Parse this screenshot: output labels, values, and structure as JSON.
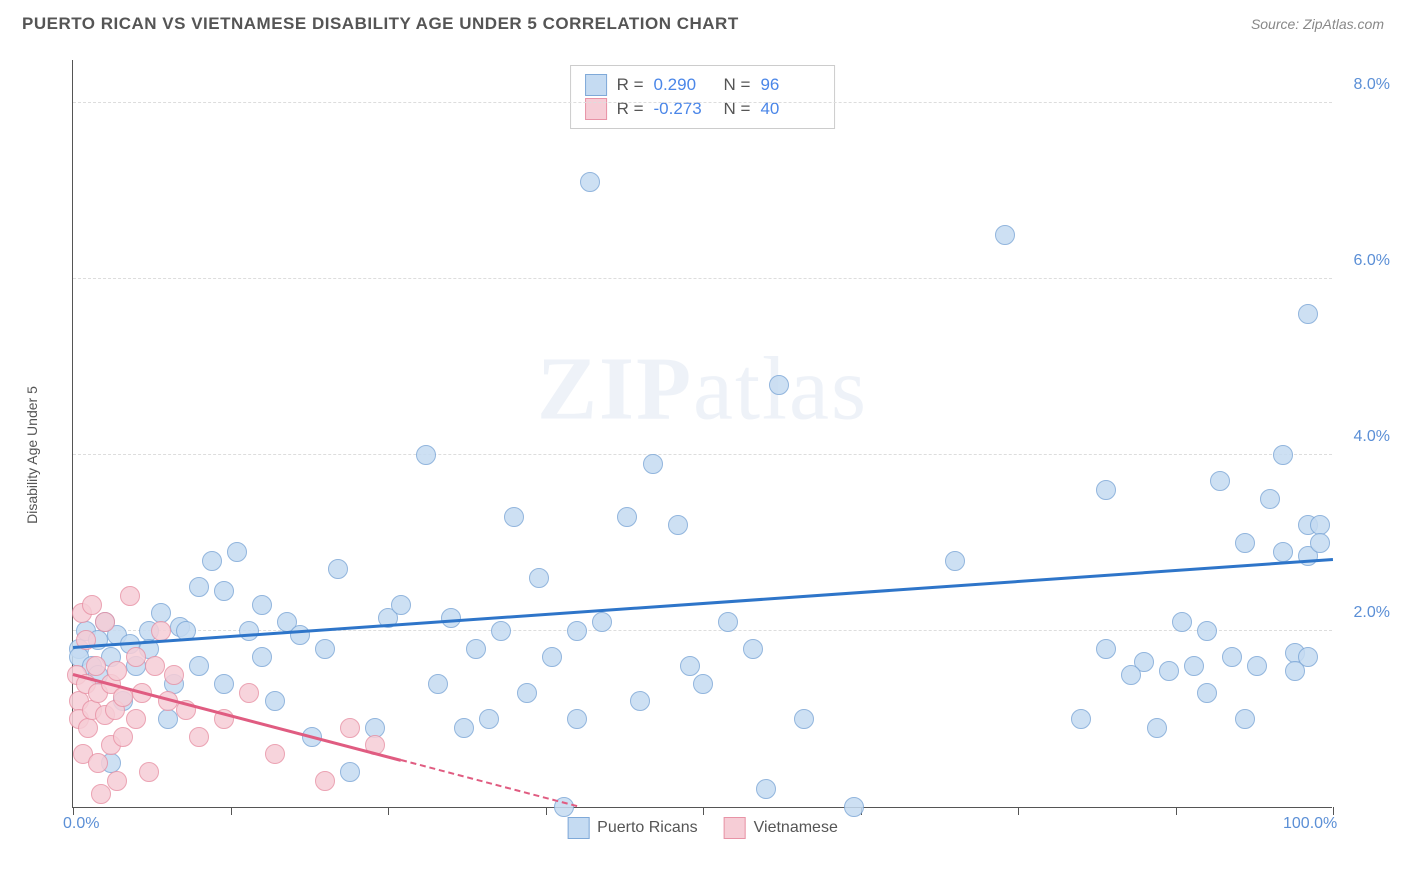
{
  "header": {
    "title": "PUERTO RICAN VS VIETNAMESE DISABILITY AGE UNDER 5 CORRELATION CHART",
    "source": "Source: ZipAtlas.com"
  },
  "watermark": "ZIPatlas",
  "chart": {
    "type": "scatter",
    "ylabel": "Disability Age Under 5",
    "xlim": [
      0,
      100
    ],
    "ylim": [
      0,
      8.5
    ],
    "x_ticks": [
      0,
      12.5,
      25,
      37.5,
      50,
      62.5,
      75,
      87.5,
      100
    ],
    "x_tick_labels": {
      "0": "0.0%",
      "100": "100.0%"
    },
    "y_ticks": [
      2.0,
      4.0,
      6.0,
      8.0
    ],
    "y_tick_format": "%.1f%%",
    "grid_color": "#dddddd",
    "axis_color": "#555555",
    "background_color": "#ffffff",
    "marker_radius": 10,
    "marker_border_width": 1.2,
    "series": [
      {
        "name": "Puerto Ricans",
        "fill": "#c5dbf2",
        "stroke": "#7fa9d8",
        "line_color": "#2e75c9",
        "points": [
          [
            0.5,
            1.8
          ],
          [
            0.5,
            1.7
          ],
          [
            1,
            2.0
          ],
          [
            1.5,
            1.6
          ],
          [
            2,
            1.9
          ],
          [
            2,
            1.5
          ],
          [
            2.5,
            2.1
          ],
          [
            3,
            1.7
          ],
          [
            3,
            0.5
          ],
          [
            3.5,
            1.95
          ],
          [
            4,
            1.2
          ],
          [
            4.5,
            1.85
          ],
          [
            5,
            1.6
          ],
          [
            6,
            2.0
          ],
          [
            6,
            1.8
          ],
          [
            7,
            2.2
          ],
          [
            7.5,
            1.0
          ],
          [
            8,
            1.4
          ],
          [
            8.5,
            2.05
          ],
          [
            9,
            2.0
          ],
          [
            10,
            1.6
          ],
          [
            10,
            2.5
          ],
          [
            11,
            2.8
          ],
          [
            12,
            1.4
          ],
          [
            12,
            2.45
          ],
          [
            13,
            2.9
          ],
          [
            14,
            2.0
          ],
          [
            15,
            1.7
          ],
          [
            15,
            2.3
          ],
          [
            16,
            1.2
          ],
          [
            17,
            2.1
          ],
          [
            18,
            1.95
          ],
          [
            19,
            0.8
          ],
          [
            20,
            1.8
          ],
          [
            21,
            2.7
          ],
          [
            22,
            0.4
          ],
          [
            24,
            0.9
          ],
          [
            25,
            2.15
          ],
          [
            26,
            2.3
          ],
          [
            28,
            4.0
          ],
          [
            29,
            1.4
          ],
          [
            30,
            2.15
          ],
          [
            31,
            0.9
          ],
          [
            32,
            1.8
          ],
          [
            33,
            1.0
          ],
          [
            34,
            2.0
          ],
          [
            35,
            3.3
          ],
          [
            36,
            1.3
          ],
          [
            37,
            2.6
          ],
          [
            38,
            1.7
          ],
          [
            39,
            0.0
          ],
          [
            40,
            2.0
          ],
          [
            40,
            1.0
          ],
          [
            41,
            7.1
          ],
          [
            42,
            2.1
          ],
          [
            44,
            3.3
          ],
          [
            45,
            1.2
          ],
          [
            46,
            3.9
          ],
          [
            48,
            3.2
          ],
          [
            49,
            1.6
          ],
          [
            50,
            1.4
          ],
          [
            52,
            2.1
          ],
          [
            54,
            1.8
          ],
          [
            55,
            0.2
          ],
          [
            56,
            4.8
          ],
          [
            70,
            2.8
          ],
          [
            74,
            6.5
          ],
          [
            82,
            1.8
          ],
          [
            82,
            3.6
          ],
          [
            85,
            1.65
          ],
          [
            86,
            0.9
          ],
          [
            88,
            2.1
          ],
          [
            89,
            1.6
          ],
          [
            90,
            1.3
          ],
          [
            91,
            3.7
          ],
          [
            92,
            1.7
          ],
          [
            93,
            3.0
          ],
          [
            93,
            1.0
          ],
          [
            94,
            1.6
          ],
          [
            95,
            3.5
          ],
          [
            96,
            2.9
          ],
          [
            96,
            4.0
          ],
          [
            97,
            1.75
          ],
          [
            97,
            1.55
          ],
          [
            98,
            3.2
          ],
          [
            98,
            2.85
          ],
          [
            98,
            1.7
          ],
          [
            98,
            5.6
          ],
          [
            99,
            3.2
          ],
          [
            99,
            3.0
          ],
          [
            80,
            1.0
          ],
          [
            84,
            1.5
          ],
          [
            87,
            1.55
          ],
          [
            90,
            2.0
          ],
          [
            58,
            1.0
          ],
          [
            62,
            0.0
          ]
        ],
        "trend": {
          "x0": 0,
          "y0": 1.8,
          "x1": 100,
          "y1": 2.8,
          "dash_from_x": null
        }
      },
      {
        "name": "Vietnamese",
        "fill": "#f6cdd6",
        "stroke": "#e893a6",
        "line_color": "#e05c81",
        "points": [
          [
            0.3,
            1.5
          ],
          [
            0.5,
            1.2
          ],
          [
            0.5,
            1.0
          ],
          [
            0.7,
            2.2
          ],
          [
            0.8,
            0.6
          ],
          [
            1,
            1.4
          ],
          [
            1,
            1.9
          ],
          [
            1.2,
            0.9
          ],
          [
            1.5,
            1.1
          ],
          [
            1.5,
            2.3
          ],
          [
            1.8,
            1.6
          ],
          [
            2,
            0.5
          ],
          [
            2,
            1.3
          ],
          [
            2.2,
            0.15
          ],
          [
            2.5,
            2.1
          ],
          [
            2.5,
            1.05
          ],
          [
            3,
            1.4
          ],
          [
            3,
            0.7
          ],
          [
            3.3,
            1.1
          ],
          [
            3.5,
            0.3
          ],
          [
            3.5,
            1.55
          ],
          [
            4,
            1.25
          ],
          [
            4,
            0.8
          ],
          [
            4.5,
            2.4
          ],
          [
            5,
            1.0
          ],
          [
            5,
            1.7
          ],
          [
            5.5,
            1.3
          ],
          [
            6,
            0.4
          ],
          [
            6.5,
            1.6
          ],
          [
            7,
            2.0
          ],
          [
            7.5,
            1.2
          ],
          [
            8,
            1.5
          ],
          [
            9,
            1.1
          ],
          [
            10,
            0.8
          ],
          [
            12,
            1.0
          ],
          [
            14,
            1.3
          ],
          [
            16,
            0.6
          ],
          [
            20,
            0.3
          ],
          [
            22,
            0.9
          ],
          [
            24,
            0.7
          ]
        ],
        "trend": {
          "x0": 0,
          "y0": 1.5,
          "x1": 40,
          "y1": 0.0,
          "dash_from_x": 26
        }
      }
    ],
    "stats": [
      {
        "swatch_fill": "#c5dbf2",
        "swatch_stroke": "#7fa9d8",
        "R": "0.290",
        "N": "96"
      },
      {
        "swatch_fill": "#f6cdd6",
        "swatch_stroke": "#e893a6",
        "R": "-0.273",
        "N": "40"
      }
    ],
    "legend": [
      {
        "label": "Puerto Ricans",
        "fill": "#c5dbf2",
        "stroke": "#7fa9d8"
      },
      {
        "label": "Vietnamese",
        "fill": "#f6cdd6",
        "stroke": "#e893a6"
      }
    ]
  }
}
